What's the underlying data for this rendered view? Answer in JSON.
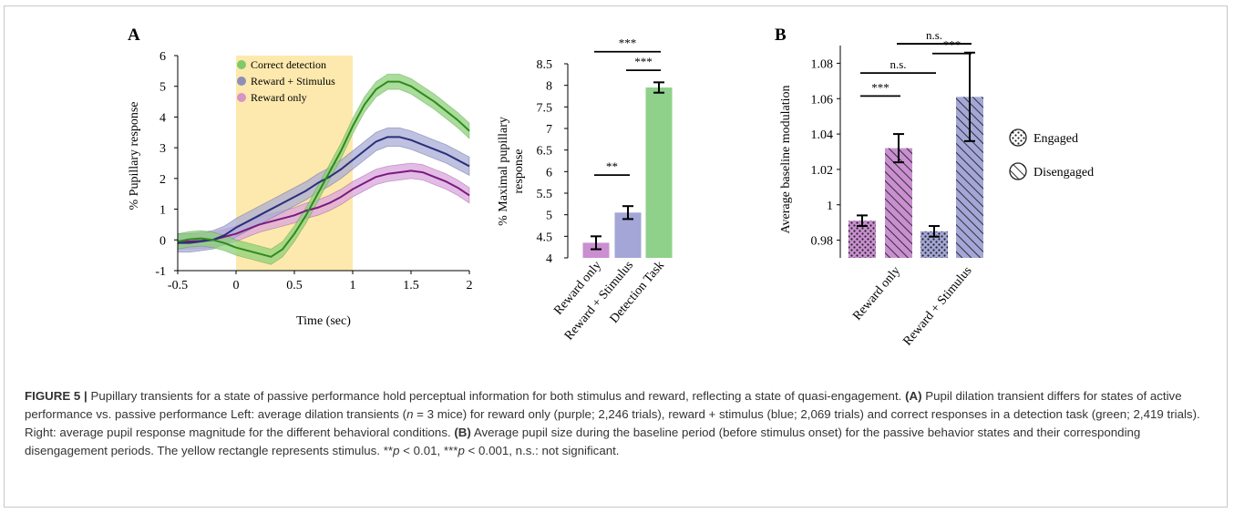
{
  "panel_a": {
    "letter": "A",
    "colors": {
      "green": "#2f8a1e",
      "green_band": "#8ed07a",
      "blue": "#2a2f7a",
      "blue_band": "#a9acd6",
      "purple": "#7b1a7e",
      "purple_band": "#d9a6dd",
      "stimulus": "#fde9ad"
    },
    "legend": [
      {
        "label": "Correct detection",
        "color": "#7fca6a"
      },
      {
        "label": "Reward + Stimulus",
        "color": "#8c8fb8"
      },
      {
        "label": "Reward only",
        "color": "#d695c6"
      }
    ]
  },
  "panel_a_bars": {
    "bar_colors": [
      "#c98fd0",
      "#a3a6d6",
      "#8fd08b"
    ],
    "brackets": [
      {
        "label": "***",
        "from": 0,
        "to": 2,
        "level": 8.78
      },
      {
        "label": "***",
        "from": 1,
        "to": 2,
        "level": 8.35
      },
      {
        "label": "**",
        "from": 0,
        "to": 1,
        "level": 5.92
      }
    ]
  },
  "panel_b": {
    "letter": "B",
    "bar_colors": [
      "#c98fd0",
      "#c98fd0",
      "#a3a6d6",
      "#a3a6d6"
    ],
    "legend": [
      {
        "label": "Engaged",
        "pattern": "dots"
      },
      {
        "label": "Disengaged",
        "pattern": "hatch"
      }
    ],
    "brackets": [
      {
        "label": "n.s.",
        "from": 1,
        "to": 3,
        "level": 1.091
      },
      {
        "label": "***",
        "from": 2,
        "to": 3,
        "level": 1.0855
      },
      {
        "label": "n.s.",
        "from": 0,
        "to": 2,
        "level": 1.0745
      },
      {
        "label": "***",
        "from": 0,
        "to": 1,
        "level": 1.0615
      }
    ]
  },
  "chart_data": [
    {
      "type": "line",
      "xlabel": "Time (sec)",
      "ylabel": "% Pupillary response",
      "xlim": [
        -0.5,
        2
      ],
      "ylim": [
        -1,
        6
      ],
      "xticks": [
        "-0.5",
        "0",
        "0.5",
        "1",
        "1.5",
        "2"
      ],
      "yticks": [
        "-1",
        "0",
        "1",
        "2",
        "3",
        "4",
        "5",
        "6"
      ],
      "stimulus_span": [
        0,
        1
      ],
      "series": [
        {
          "name": "Correct detection",
          "x": [
            -0.5,
            -0.4,
            -0.3,
            -0.2,
            -0.1,
            0,
            0.1,
            0.2,
            0.3,
            0.4,
            0.5,
            0.6,
            0.7,
            0.8,
            0.9,
            1.0,
            1.1,
            1.2,
            1.3,
            1.4,
            1.5,
            1.6,
            1.7,
            1.8,
            1.9,
            2.0
          ],
          "y": [
            -0.05,
            0.02,
            0.05,
            0,
            -0.1,
            -0.25,
            -0.35,
            -0.45,
            -0.55,
            -0.3,
            0.2,
            0.8,
            1.5,
            2.2,
            2.9,
            3.7,
            4.4,
            4.9,
            5.15,
            5.15,
            5.0,
            4.75,
            4.5,
            4.2,
            3.9,
            3.55
          ],
          "error": 0.25
        },
        {
          "name": "Reward + Stimulus",
          "x": [
            -0.5,
            -0.4,
            -0.3,
            -0.2,
            -0.1,
            0,
            0.1,
            0.2,
            0.3,
            0.4,
            0.5,
            0.6,
            0.7,
            0.8,
            0.9,
            1.0,
            1.1,
            1.2,
            1.3,
            1.4,
            1.5,
            1.6,
            1.7,
            1.8,
            1.9,
            2.0
          ],
          "y": [
            -0.1,
            -0.1,
            -0.05,
            0,
            0.15,
            0.4,
            0.6,
            0.8,
            1.0,
            1.2,
            1.4,
            1.6,
            1.85,
            2.05,
            2.3,
            2.6,
            2.9,
            3.2,
            3.35,
            3.35,
            3.25,
            3.1,
            2.95,
            2.8,
            2.6,
            2.4
          ],
          "error": 0.3
        },
        {
          "name": "Reward only",
          "x": [
            -0.5,
            -0.4,
            -0.3,
            -0.2,
            -0.1,
            0,
            0.1,
            0.2,
            0.3,
            0.4,
            0.5,
            0.6,
            0.7,
            0.8,
            0.9,
            1.0,
            1.1,
            1.2,
            1.3,
            1.4,
            1.5,
            1.6,
            1.7,
            1.8,
            1.9,
            2.0
          ],
          "y": [
            -0.05,
            -0.05,
            -0.03,
            0,
            0.1,
            0.2,
            0.35,
            0.5,
            0.6,
            0.7,
            0.8,
            0.95,
            1.05,
            1.2,
            1.4,
            1.65,
            1.85,
            2.05,
            2.15,
            2.2,
            2.25,
            2.2,
            2.05,
            1.9,
            1.7,
            1.45
          ],
          "error": 0.25
        }
      ]
    },
    {
      "type": "bar",
      "ylabel": "% Maximal pupillary response",
      "categories": [
        "Reward only",
        "Reward + Stimulus",
        "Detection Task"
      ],
      "values": [
        4.35,
        5.05,
        7.95
      ],
      "errors": [
        0.15,
        0.15,
        0.12
      ],
      "ylim": [
        4,
        8.5
      ],
      "yticks": [
        "4",
        "4.5",
        "5",
        "5.5",
        "6",
        "6.5",
        "7",
        "7.5",
        "8",
        "8.5"
      ]
    },
    {
      "type": "bar",
      "ylabel": "Average baseline modulation",
      "categories": [
        "Reward only",
        "Reward + Stimulus"
      ],
      "series": [
        {
          "name": "Engaged",
          "values": [
            0.991,
            0.985
          ],
          "errors": [
            0.003,
            0.003
          ]
        },
        {
          "name": "Disengaged",
          "values": [
            1.032,
            1.061
          ],
          "errors": [
            0.008,
            0.025
          ]
        }
      ],
      "ylim": [
        0.97,
        1.09
      ],
      "yticks": [
        "0.98",
        "1",
        "1.02",
        "1.04",
        "1.06",
        "1.08"
      ]
    }
  ],
  "caption": {
    "figure_label": "FIGURE 5 |",
    "title": "Pupillary transients for a state of passive performance hold perceptual information for both stimulus and reward, reflecting a state of quasi-engagement.",
    "a_label": "(A)",
    "a_text_1": "Pupil dilation transient differs for states of active performance vs. passive performance Left: average dilation transients (",
    "n_var": "n",
    "a_text_2": "= 3 mice) for reward only (purple; 2,246 trials), reward + stimulus (blue; 2,069 trials) and correct responses in a detection task (green; 2,419 trials). Right: average pupil response magnitude for the different behavioral conditions.",
    "b_label": "(B)",
    "b_text_1": "Average pupil size during the baseline period (before stimulus onset) for the passive behavior states and their corresponding disengagement periods. The yellow rectangle represents stimulus. **",
    "p_var_1": "p",
    "b_text_2": "< 0.01, ***",
    "p_var_2": "p",
    "b_text_3": "< 0.001, n.s.: not significant."
  }
}
